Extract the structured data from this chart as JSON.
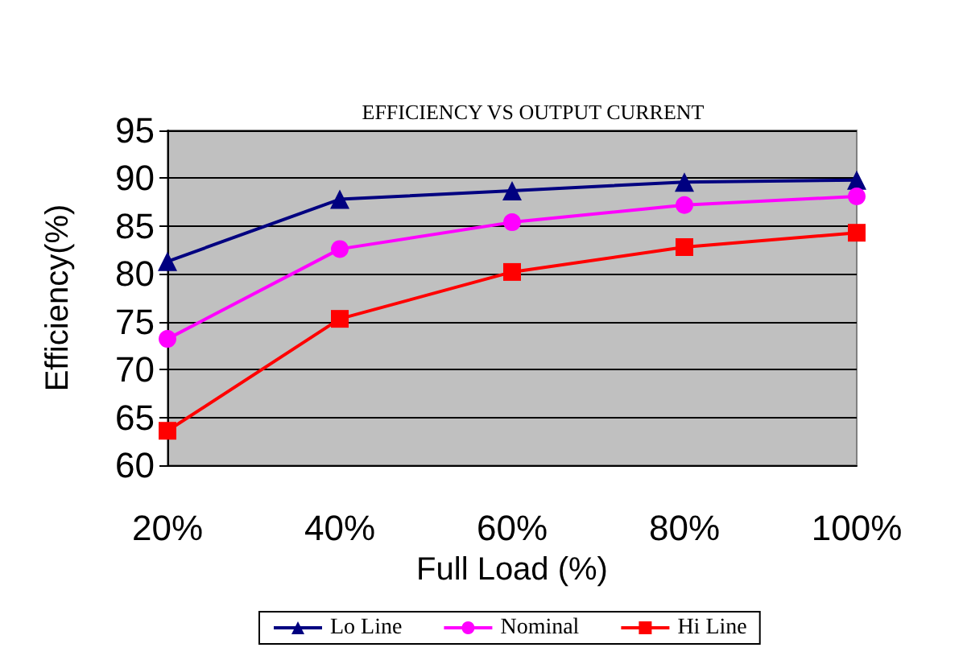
{
  "chart_data": {
    "type": "line",
    "title": "EFFICIENCY VS OUTPUT CURRENT",
    "xlabel": "Full Load (%)",
    "ylabel": "Efficiency(%)",
    "categories": [
      "20%",
      "40%",
      "60%",
      "80%",
      "100%"
    ],
    "series": [
      {
        "name": "Lo Line",
        "color": "#000080",
        "marker": "triangle",
        "values": [
          81.3,
          87.8,
          88.7,
          89.6,
          89.8
        ]
      },
      {
        "name": "Nominal",
        "color": "#ff00ff",
        "marker": "circle",
        "values": [
          73.2,
          82.6,
          85.4,
          87.2,
          88.1
        ]
      },
      {
        "name": "Hi Line",
        "color": "#ff0000",
        "marker": "square",
        "values": [
          63.6,
          75.3,
          80.2,
          82.8,
          84.3
        ]
      }
    ],
    "ylim": [
      60,
      95
    ],
    "yticks": [
      60,
      65,
      70,
      75,
      80,
      85,
      90,
      95
    ],
    "grid": "y",
    "legend": "bottom"
  }
}
